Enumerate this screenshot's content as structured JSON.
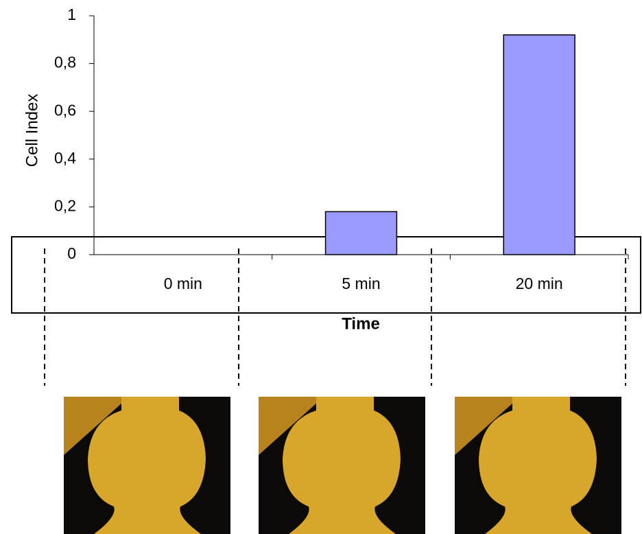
{
  "chart_data": {
    "type": "bar",
    "y_label": "Cell Index",
    "x_label": "Time",
    "categories": [
      "0 min",
      "5 min",
      "20 min"
    ],
    "values": [
      0,
      0.18,
      0.92
    ],
    "color": "#9999ff",
    "ylim": [
      0,
      1
    ],
    "yticks": [
      0,
      {
        "value": 0.2,
        "label": "0,2"
      },
      {
        "value": 0.4,
        "label": "0,4"
      },
      {
        "value": 0.6,
        "label": "0,6"
      },
      {
        "value": 0.8,
        "label": "0,8"
      },
      1
    ],
    "grid": false
  }
}
